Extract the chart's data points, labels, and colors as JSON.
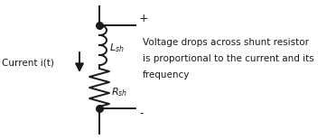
{
  "bg_color": "#ffffff",
  "line_color": "#1a1a1a",
  "dot_color": "#1a1a1a",
  "label_lsh": "$L_{sh}$",
  "label_rsh": "$R_{sh}$",
  "label_current": "Current i(t)",
  "label_plus": "+",
  "label_minus": "-",
  "desc_line1": "Voltage drops across shunt resistor",
  "desc_line2": "is proportional to the current and its",
  "desc_line3": "frequency",
  "figsize": [
    3.72,
    1.55
  ],
  "dpi": 100
}
